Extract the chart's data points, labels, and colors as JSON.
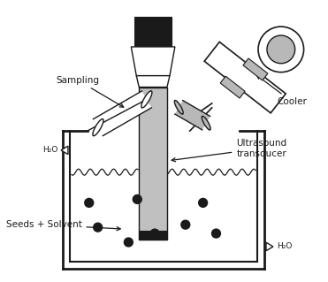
{
  "bg_color": "#ffffff",
  "line_color": "#1a1a1a",
  "gray_light": "#c0c0c0",
  "gray_dark": "#1a1a1a",
  "gray_cooler": "#b8b8b8",
  "labels": {
    "sampling": "Sampling",
    "h2o_left": "H₂O",
    "h2o_right": "H₂O",
    "ultrasound": "Ultrasound\ntransducer",
    "seeds": "Seeds + Solvent",
    "cooler": "Cooler"
  },
  "figsize": [
    3.71,
    3.19
  ],
  "dpi": 100
}
